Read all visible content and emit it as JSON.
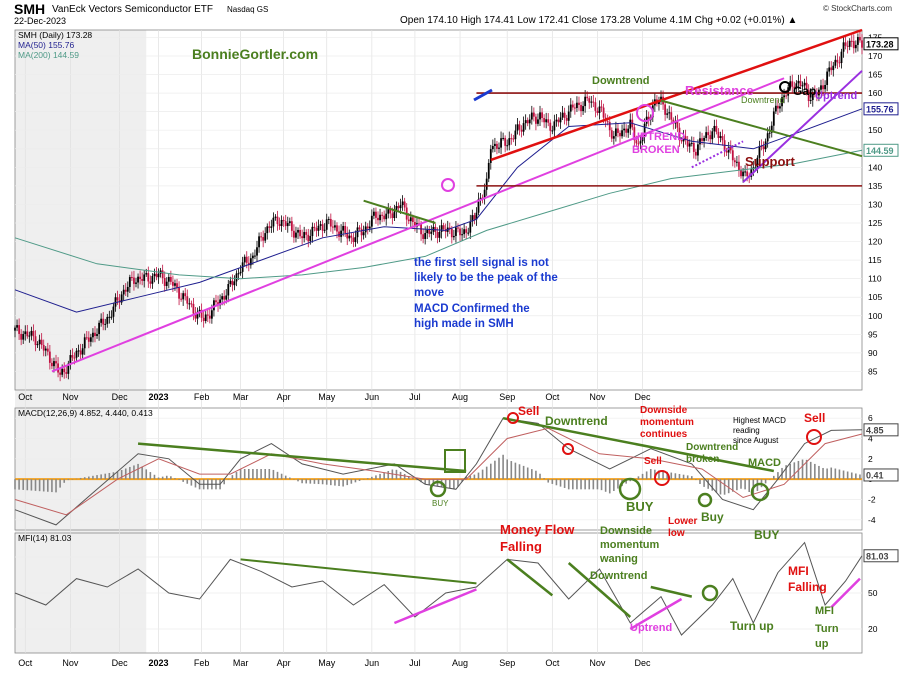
{
  "header": {
    "symbol": "SMH",
    "name": "VanEck Vectors Semiconductor ETF",
    "exchange": "Nasdaq GS",
    "date": "22-Dec-2023",
    "source": "© StockCharts.com",
    "ohlc": "Open 174.10  High 174.41  Low 172.41  Close 173.28  Volume 4.1M  Chg +0.02 (+0.01%) ▲"
  },
  "legend": {
    "price": "SMH (Daily) 173.28",
    "ma50": "MA(50) 155.76",
    "ma200": "MA(200) 144.59",
    "macd": "MACD(12,26,9) 4.852, 4.440, 0.413",
    "mfi": "MFI(14) 81.03"
  },
  "colors": {
    "ma50": "#1f1f8f",
    "ma200": "#4f9a87",
    "up": "#000000",
    "down": "#c01040",
    "trend_green": "#4b7f1f",
    "magenta": "#e040e0",
    "red": "#e01010",
    "maroon": "#8b1010",
    "purple": "#9a30e0",
    "orange": "#f0a020",
    "blue": "#1a3ad0"
  },
  "chart_data": [
    {
      "type": "candlestick",
      "title": "SMH (Daily) 173.28",
      "x_months": [
        "Oct",
        "Nov",
        "Dec",
        "2023",
        "Feb",
        "Mar",
        "Apr",
        "May",
        "Jun",
        "Jul",
        "Aug",
        "Sep",
        "Oct",
        "Nov",
        "Dec"
      ],
      "y_ticks": [
        85,
        90,
        95,
        100,
        105,
        110,
        115,
        120,
        125,
        130,
        135,
        140,
        145,
        150,
        155,
        160,
        165,
        170,
        175
      ],
      "ylim": [
        80,
        177
      ],
      "last_labels": [
        "173.28",
        "155.76",
        "144.59"
      ],
      "close": [
        [
          0,
          96
        ],
        [
          10,
          94
        ],
        [
          18,
          88
        ],
        [
          22,
          84
        ],
        [
          30,
          90
        ],
        [
          38,
          95
        ],
        [
          46,
          100
        ],
        [
          52,
          106
        ],
        [
          58,
          110
        ],
        [
          64,
          110
        ],
        [
          70,
          111
        ],
        [
          76,
          109
        ],
        [
          82,
          105
        ],
        [
          88,
          101
        ],
        [
          92,
          99
        ],
        [
          98,
          103
        ],
        [
          104,
          107
        ],
        [
          110,
          113
        ],
        [
          116,
          116
        ],
        [
          122,
          123
        ],
        [
          128,
          126
        ],
        [
          134,
          124
        ],
        [
          140,
          121
        ],
        [
          146,
          123
        ],
        [
          152,
          125
        ],
        [
          158,
          123
        ],
        [
          164,
          121
        ],
        [
          170,
          123
        ],
        [
          176,
          127
        ],
        [
          182,
          127
        ],
        [
          188,
          130
        ],
        [
          194,
          125
        ],
        [
          200,
          122
        ],
        [
          206,
          123
        ],
        [
          212,
          123
        ],
        [
          218,
          122
        ],
        [
          224,
          126
        ],
        [
          226,
          131
        ],
        [
          230,
          135
        ],
        [
          232,
          146
        ],
        [
          236,
          146
        ],
        [
          240,
          147
        ],
        [
          244,
          149
        ],
        [
          248,
          152
        ],
        [
          252,
          153
        ],
        [
          256,
          154
        ],
        [
          260,
          151
        ],
        [
          264,
          152
        ],
        [
          268,
          154
        ],
        [
          272,
          156
        ],
        [
          276,
          157
        ],
        [
          280,
          158
        ],
        [
          284,
          156
        ],
        [
          288,
          153
        ],
        [
          292,
          148
        ],
        [
          296,
          150
        ],
        [
          300,
          151
        ],
        [
          304,
          146
        ],
        [
          308,
          152
        ],
        [
          312,
          158
        ],
        [
          316,
          157
        ],
        [
          320,
          153
        ],
        [
          324,
          149
        ],
        [
          328,
          146
        ],
        [
          332,
          145
        ],
        [
          336,
          148
        ],
        [
          340,
          150
        ],
        [
          344,
          148
        ],
        [
          348,
          144
        ],
        [
          352,
          141
        ],
        [
          356,
          137
        ],
        [
          360,
          140
        ],
        [
          364,
          145
        ],
        [
          368,
          150
        ],
        [
          372,
          157
        ],
        [
          376,
          160
        ],
        [
          380,
          163
        ],
        [
          384,
          162
        ],
        [
          388,
          159
        ],
        [
          392,
          160
        ],
        [
          396,
          165
        ],
        [
          400,
          168
        ],
        [
          404,
          172
        ],
        [
          408,
          174
        ],
        [
          413,
          173
        ]
      ],
      "ma50": [
        [
          0,
          107
        ],
        [
          30,
          101
        ],
        [
          60,
          105
        ],
        [
          90,
          109
        ],
        [
          120,
          115
        ],
        [
          150,
          121
        ],
        [
          180,
          124
        ],
        [
          210,
          123
        ],
        [
          225,
          126
        ],
        [
          245,
          140
        ],
        [
          270,
          151
        ],
        [
          300,
          152
        ],
        [
          330,
          147
        ],
        [
          360,
          145
        ],
        [
          385,
          150
        ],
        [
          413,
          155.76
        ]
      ],
      "ma200": [
        [
          0,
          121
        ],
        [
          40,
          114
        ],
        [
          80,
          111
        ],
        [
          110,
          110
        ],
        [
          140,
          111
        ],
        [
          170,
          113
        ],
        [
          200,
          116
        ],
        [
          230,
          123
        ],
        [
          260,
          128
        ],
        [
          290,
          133
        ],
        [
          320,
          137
        ],
        [
          350,
          139
        ],
        [
          380,
          141
        ],
        [
          413,
          144.59
        ]
      ],
      "annotations": [
        "BonnieGortler.com",
        "Downtrend",
        "Resistance",
        "UPTREND",
        "BROKEN",
        "Gap",
        "Downtrend",
        "Uptrend",
        "Support",
        "the first sell signal is not likely to be the peak of the move",
        "MACD Confirmed the high made in SMH"
      ]
    },
    {
      "type": "line",
      "title": "MACD(12,26,9) 4.852, 4.440, 0.413",
      "y_ticks": [
        -4,
        -2,
        0,
        2,
        4,
        6
      ],
      "ylim": [
        -5,
        7
      ],
      "last_labels": [
        "4.852",
        "0.413"
      ],
      "macd": [
        [
          0,
          -3
        ],
        [
          20,
          -4.5
        ],
        [
          40,
          -1
        ],
        [
          60,
          2.5
        ],
        [
          75,
          2
        ],
        [
          90,
          -0.5
        ],
        [
          100,
          -0.5
        ],
        [
          110,
          2
        ],
        [
          125,
          3.5
        ],
        [
          140,
          1.5
        ],
        [
          160,
          0.5
        ],
        [
          185,
          1.5
        ],
        [
          200,
          -0.5
        ],
        [
          215,
          -1
        ],
        [
          225,
          1.5
        ],
        [
          238,
          6
        ],
        [
          255,
          5.5
        ],
        [
          270,
          3
        ],
        [
          290,
          1
        ],
        [
          310,
          3
        ],
        [
          330,
          1.5
        ],
        [
          345,
          -2
        ],
        [
          360,
          -3
        ],
        [
          372,
          0
        ],
        [
          385,
          3.5
        ],
        [
          398,
          4.8
        ],
        [
          413,
          4.852
        ]
      ],
      "signal": [
        [
          0,
          -2
        ],
        [
          25,
          -3.5
        ],
        [
          50,
          0
        ],
        [
          70,
          2
        ],
        [
          90,
          0.5
        ],
        [
          105,
          0.5
        ],
        [
          125,
          2.5
        ],
        [
          150,
          1.5
        ],
        [
          175,
          0.8
        ],
        [
          200,
          0
        ],
        [
          220,
          0
        ],
        [
          240,
          4
        ],
        [
          260,
          5
        ],
        [
          285,
          2.5
        ],
        [
          310,
          2
        ],
        [
          335,
          1
        ],
        [
          355,
          -1.8
        ],
        [
          375,
          -0.5
        ],
        [
          395,
          3.5
        ],
        [
          413,
          4.44
        ]
      ],
      "annotations": [
        "BUY",
        "Sell",
        "Downtrend",
        "Downside momentum continues",
        "Highest MACD reading since August",
        "Sell",
        "Downtrend broken",
        "Sell",
        "BUY",
        "MACD",
        "Buy",
        "Lower low",
        "BUY"
      ]
    },
    {
      "type": "line",
      "title": "MFI(14) 81.03",
      "y_ticks": [
        20,
        50,
        80
      ],
      "ylim": [
        0,
        100
      ],
      "last_labels": [
        "81.03"
      ],
      "mfi": [
        [
          0,
          50
        ],
        [
          15,
          40
        ],
        [
          30,
          62
        ],
        [
          45,
          55
        ],
        [
          60,
          70
        ],
        [
          75,
          50
        ],
        [
          90,
          45
        ],
        [
          105,
          78
        ],
        [
          120,
          68
        ],
        [
          135,
          55
        ],
        [
          150,
          60
        ],
        [
          165,
          40
        ],
        [
          180,
          57
        ],
        [
          195,
          30
        ],
        [
          210,
          50
        ],
        [
          225,
          55
        ],
        [
          240,
          78
        ],
        [
          255,
          75
        ],
        [
          270,
          45
        ],
        [
          285,
          70
        ],
        [
          300,
          25
        ],
        [
          315,
          47
        ],
        [
          325,
          15
        ],
        [
          340,
          40
        ],
        [
          350,
          62
        ],
        [
          360,
          25
        ],
        [
          372,
          67
        ],
        [
          385,
          92
        ],
        [
          395,
          40
        ],
        [
          405,
          60
        ],
        [
          413,
          81.03
        ]
      ],
      "annotations": [
        "Money Flow Falling",
        "Downside momentum waning",
        "Downtrend",
        "Uptrend",
        "Turn up",
        "MFI Falling",
        "MFI Turn up"
      ]
    }
  ]
}
